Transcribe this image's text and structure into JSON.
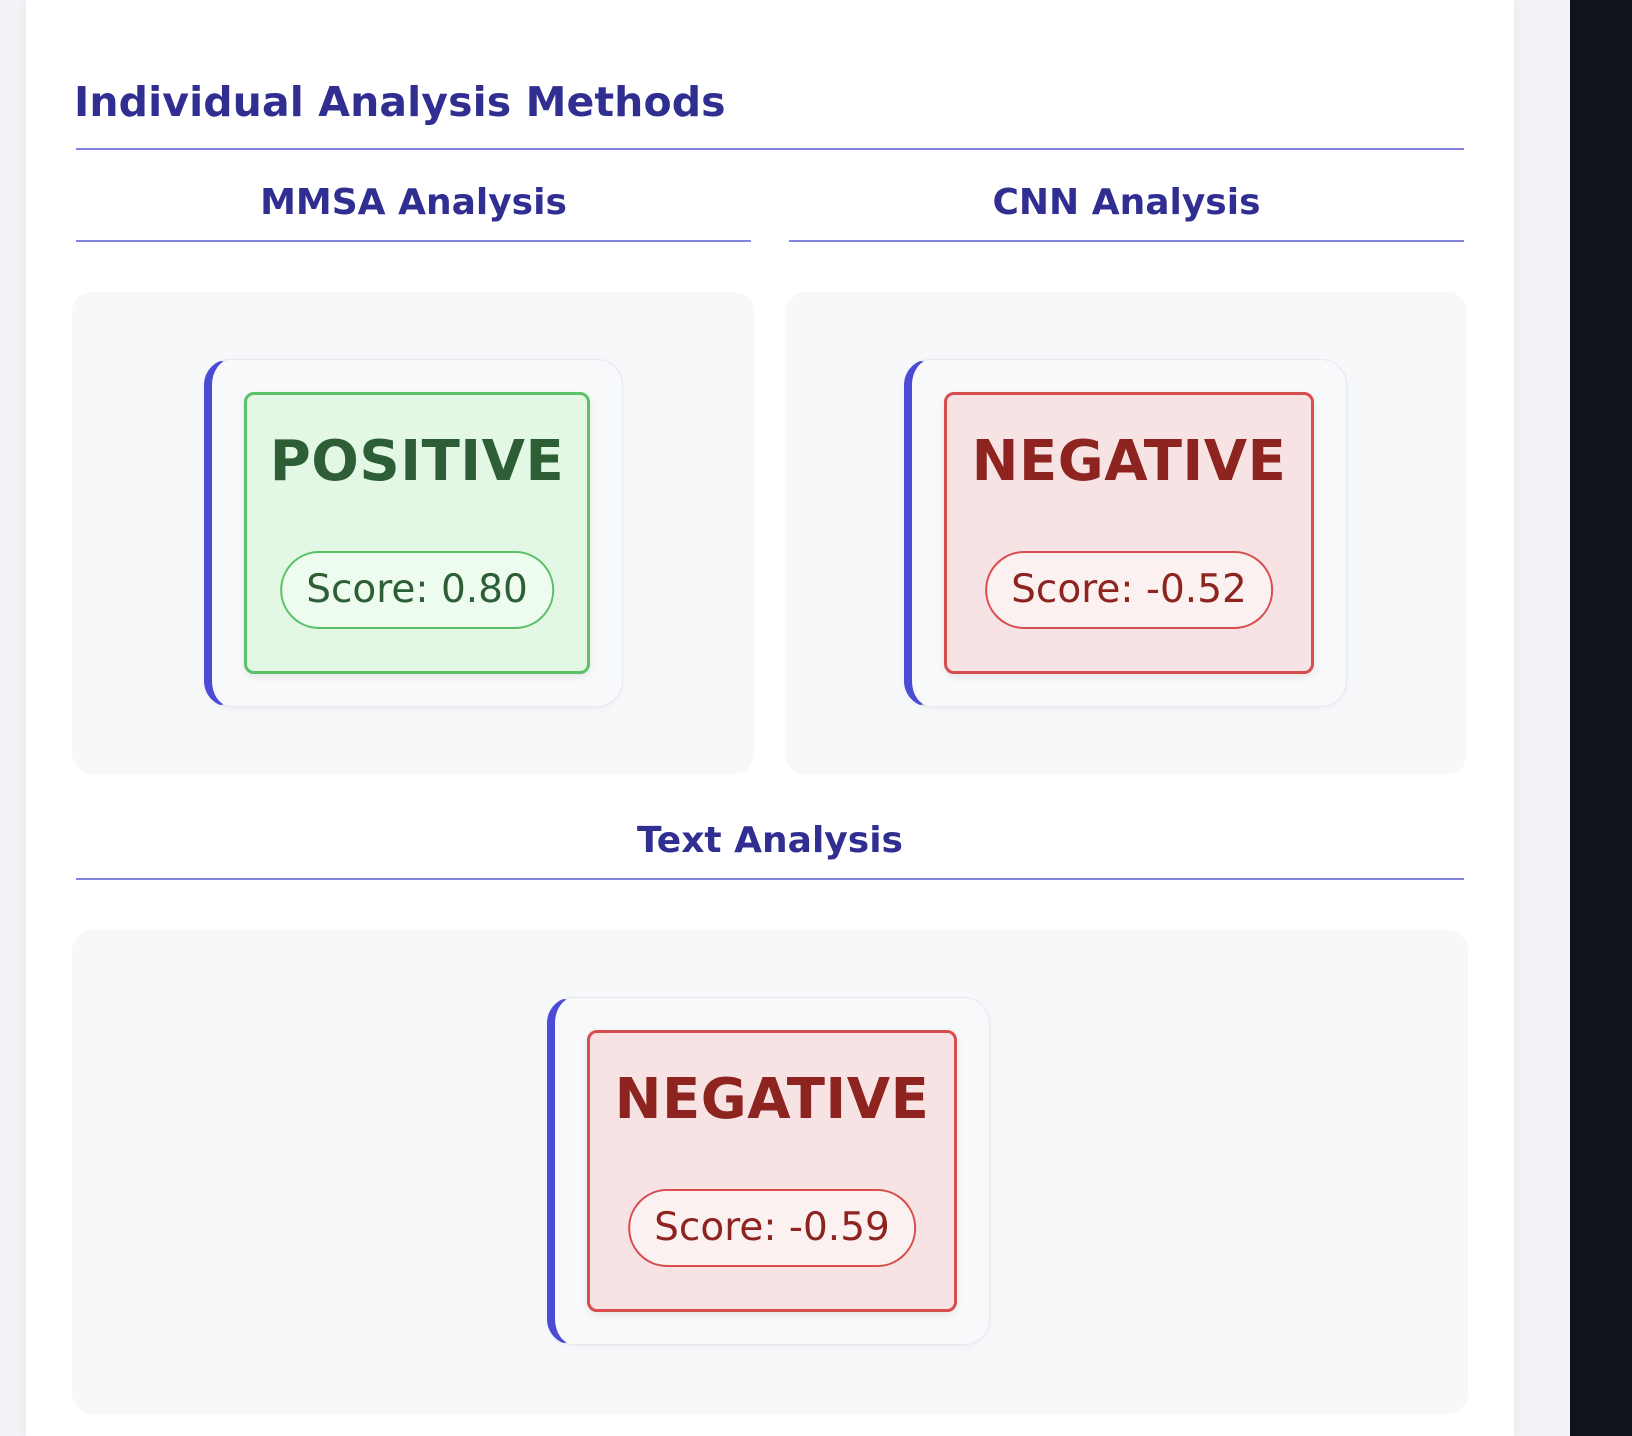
{
  "section": {
    "title": "Individual Analysis Methods"
  },
  "methods": {
    "mmsa": {
      "title": "MMSA Analysis",
      "sentiment": "POSITIVE",
      "score_text": "Score: 0.80"
    },
    "cnn": {
      "title": "CNN Analysis",
      "sentiment": "NEGATIVE",
      "score_text": "Score: -0.52"
    },
    "text": {
      "title": "Text Analysis",
      "sentiment": "NEGATIVE",
      "score_text": "Score: -0.59"
    }
  },
  "colors": {
    "heading": "#312e91",
    "accent": "#4b4bd6",
    "positive_border": "#5cc067",
    "positive_text": "#2e5e36",
    "negative_border": "#d84d4d",
    "negative_text": "#8e2420"
  }
}
